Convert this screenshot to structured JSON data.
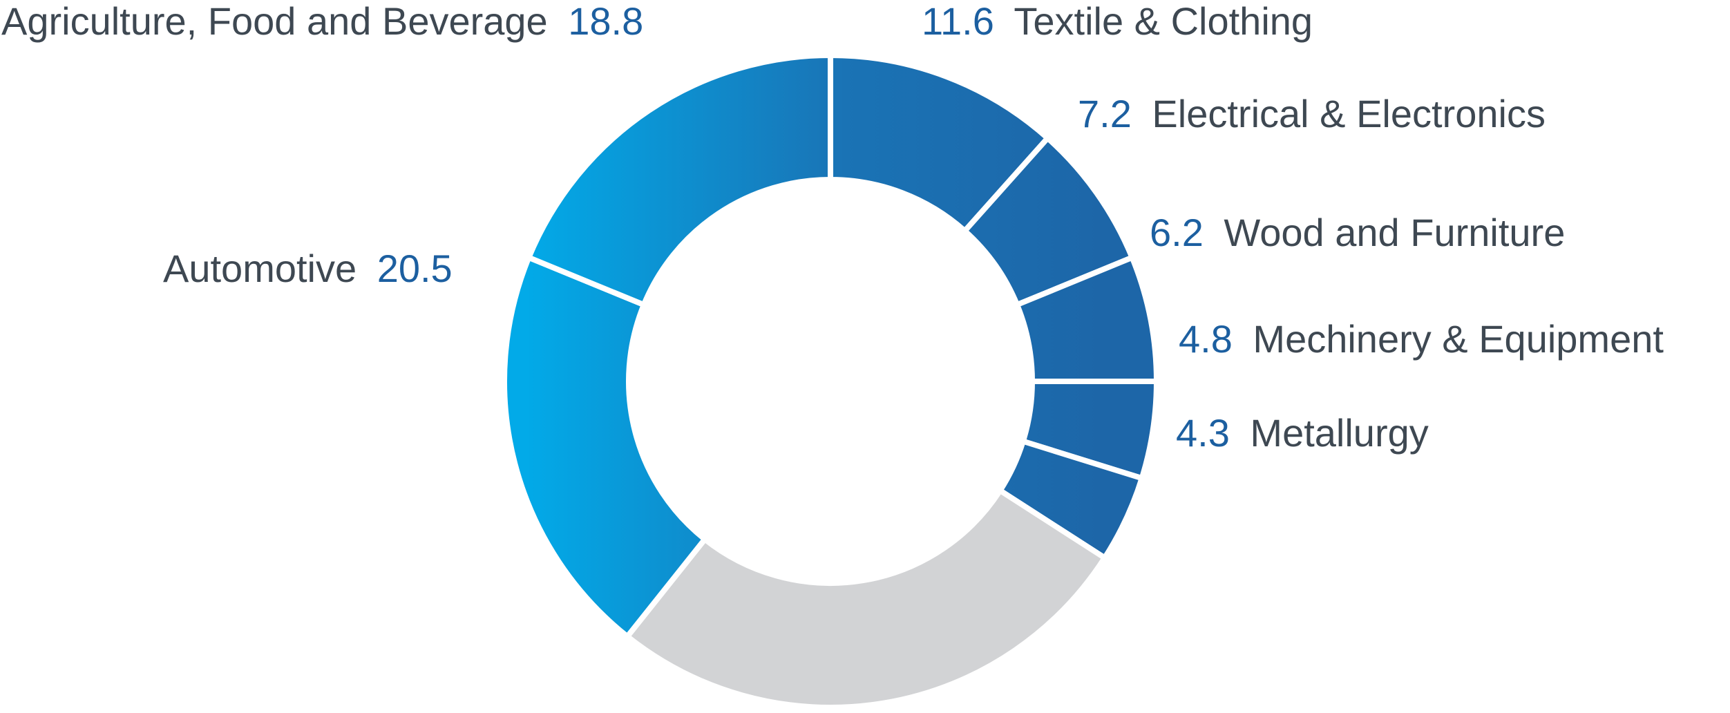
{
  "chart_data": {
    "type": "pie",
    "donut": true,
    "title": "",
    "slices": [
      {
        "label": "Textile & Clothing",
        "value": 11.6,
        "color": "#147fc4"
      },
      {
        "label": "Electrical & Electronics",
        "value": 7.2,
        "color": "#1d67a9"
      },
      {
        "label": "Wood and Furniture",
        "value": 6.2,
        "color": "#1d67a9"
      },
      {
        "label": "Mechinery & Equipment",
        "value": 4.8,
        "color": "#1d67a9"
      },
      {
        "label": "Metallurgy",
        "value": 4.3,
        "color": "#1d67a9"
      },
      {
        "label": "",
        "value": 26.6,
        "color": "#d2d3d5"
      },
      {
        "label": "Automotive",
        "value": 20.5,
        "color": "#03a6e4"
      },
      {
        "label": "Agriculture, Food and Beverage",
        "value": 18.8,
        "color": "#05a2e0"
      }
    ],
    "start_angle_deg": 0,
    "legend": "none",
    "label_color": "#3e4852",
    "value_color": "#1c5fa0"
  }
}
